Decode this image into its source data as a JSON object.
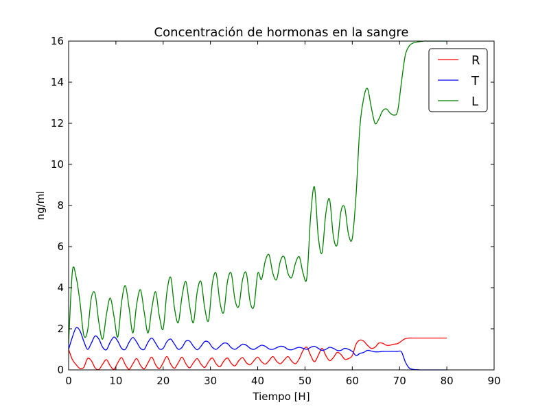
{
  "chart_data": {
    "type": "line",
    "title": "Concentración de hormonas en la sangre",
    "xlabel": "Tiempo [H]",
    "ylabel": "ng/ml",
    "xlim": [
      0,
      90
    ],
    "ylim": [
      0,
      16
    ],
    "xticks": [
      0,
      10,
      20,
      30,
      40,
      50,
      60,
      70,
      80,
      90
    ],
    "yticks": [
      0,
      2,
      4,
      6,
      8,
      10,
      12,
      14,
      16
    ],
    "grid": false,
    "legend_position": "top-right",
    "series": [
      {
        "name": "R",
        "color": "#ff0000",
        "x": [
          0,
          0.8,
          1.6,
          2.4,
          3.2,
          4.0,
          4.8,
          5.6,
          6.4,
          7.2,
          8.0,
          8.8,
          9.6,
          10.4,
          11.2,
          12.0,
          12.8,
          13.6,
          14.4,
          15.2,
          16.0,
          16.8,
          17.6,
          18.4,
          19.2,
          20.0,
          20.8,
          21.6,
          22.4,
          23.2,
          24.0,
          24.8,
          25.6,
          26.4,
          27.2,
          28.0,
          28.8,
          29.6,
          30.4,
          31.2,
          32.0,
          32.8,
          33.6,
          34.4,
          35.2,
          36.0,
          36.8,
          37.6,
          38.4,
          39.2,
          40.0,
          40.8,
          41.6,
          42.4,
          43.2,
          44.0,
          44.8,
          45.6,
          46.4,
          47.2,
          48.0,
          48.8,
          49.6,
          50.4,
          51.2,
          52.0,
          52.8,
          53.6,
          54.4,
          55.2,
          56.0,
          56.8,
          57.6,
          58.4,
          59.2,
          60.0,
          60.8,
          61.6,
          62.4,
          63.2,
          64.0,
          64.8,
          65.6,
          66.4,
          67.2,
          68.0,
          68.8,
          69.6,
          70.4,
          71.2,
          72.0,
          72.8,
          73.6,
          74.4,
          75.2,
          76.0,
          76.8,
          77.6,
          78.4,
          79.2,
          80.0
        ],
        "values": [
          1.0,
          0.5,
          0.25,
          0.07,
          0.12,
          0.55,
          0.45,
          0.1,
          0.02,
          0.28,
          0.5,
          0.2,
          0.03,
          0.35,
          0.6,
          0.25,
          0.03,
          0.3,
          0.55,
          0.22,
          0.05,
          0.35,
          0.62,
          0.25,
          0.06,
          0.35,
          0.65,
          0.28,
          0.08,
          0.35,
          0.62,
          0.3,
          0.1,
          0.35,
          0.55,
          0.28,
          0.12,
          0.4,
          0.58,
          0.3,
          0.15,
          0.42,
          0.58,
          0.32,
          0.2,
          0.45,
          0.6,
          0.35,
          0.25,
          0.45,
          0.62,
          0.4,
          0.28,
          0.45,
          0.65,
          0.42,
          0.3,
          0.48,
          0.65,
          0.42,
          0.3,
          0.55,
          0.95,
          1.1,
          0.7,
          0.4,
          0.7,
          1.05,
          0.7,
          0.45,
          0.6,
          0.85,
          0.75,
          0.52,
          0.55,
          0.7,
          1.25,
          1.45,
          1.4,
          1.2,
          1.05,
          1.1,
          1.3,
          1.3,
          1.2,
          1.2,
          1.25,
          1.28,
          1.4,
          1.52,
          1.55,
          1.55,
          1.55,
          1.55,
          1.55,
          1.55,
          1.55,
          1.55,
          1.55,
          1.55,
          1.55
        ]
      },
      {
        "name": "T",
        "color": "#0000ff",
        "x": [
          0,
          0.8,
          1.6,
          2.4,
          3.2,
          4.0,
          4.8,
          5.6,
          6.4,
          7.2,
          8.0,
          8.8,
          9.6,
          10.4,
          11.2,
          12.0,
          12.8,
          13.6,
          14.4,
          15.2,
          16.0,
          16.8,
          17.6,
          18.4,
          19.2,
          20.0,
          20.8,
          21.6,
          22.4,
          23.2,
          24.0,
          24.8,
          25.6,
          26.4,
          27.2,
          28.0,
          28.8,
          29.6,
          30.4,
          31.2,
          32.0,
          32.8,
          33.6,
          34.4,
          35.2,
          36.0,
          36.8,
          37.6,
          38.4,
          39.2,
          40.0,
          40.8,
          41.6,
          42.4,
          43.2,
          44.0,
          44.8,
          45.6,
          46.4,
          47.2,
          48.0,
          48.8,
          49.6,
          50.4,
          51.2,
          52.0,
          52.8,
          53.6,
          54.4,
          55.2,
          56.0,
          56.8,
          57.6,
          58.4,
          59.2,
          60.0,
          60.8,
          61.6,
          62.4,
          63.2,
          64.0,
          64.8,
          65.6,
          66.4,
          67.2,
          68.0,
          68.8,
          69.6,
          70.4,
          71.2,
          72.0,
          72.8,
          73.6,
          74.4,
          75.2,
          76.0,
          76.8,
          77.6,
          78.4,
          79.2,
          80.0
        ],
        "values": [
          1.0,
          1.6,
          2.05,
          1.9,
          1.4,
          1.0,
          1.3,
          1.65,
          1.5,
          1.1,
          0.98,
          1.35,
          1.6,
          1.4,
          1.05,
          1.0,
          1.35,
          1.58,
          1.35,
          1.05,
          1.0,
          1.35,
          1.55,
          1.3,
          1.02,
          1.05,
          1.38,
          1.5,
          1.25,
          1.0,
          1.1,
          1.4,
          1.4,
          1.15,
          0.98,
          1.15,
          1.38,
          1.35,
          1.1,
          1.0,
          1.15,
          1.3,
          1.28,
          1.08,
          1.0,
          1.12,
          1.25,
          1.2,
          1.05,
          1.0,
          1.1,
          1.2,
          1.15,
          1.02,
          1.0,
          1.08,
          1.15,
          1.12,
          1.0,
          0.98,
          1.05,
          1.1,
          1.05,
          1.0,
          1.1,
          1.15,
          1.05,
          0.95,
          1.0,
          1.1,
          1.05,
          0.95,
          0.95,
          1.05,
          1.0,
          0.9,
          0.7,
          0.8,
          0.85,
          0.95,
          0.92,
          0.88,
          0.88,
          0.9,
          0.9,
          0.9,
          0.9,
          0.9,
          0.88,
          0.4,
          0.1,
          0.03,
          0.01,
          0.0,
          0.0,
          0.0,
          0.0,
          0.0,
          0.0,
          0.0,
          0.0
        ]
      },
      {
        "name": "L",
        "color": "#008000",
        "x": [
          0,
          0.8,
          1.6,
          2.4,
          3.2,
          4.0,
          4.8,
          5.6,
          6.4,
          7.2,
          8.0,
          8.8,
          9.6,
          10.4,
          11.2,
          12.0,
          12.8,
          13.6,
          14.4,
          15.2,
          16.0,
          16.8,
          17.6,
          18.4,
          19.2,
          20.0,
          20.8,
          21.6,
          22.4,
          23.2,
          24.0,
          24.8,
          25.6,
          26.4,
          27.2,
          28.0,
          28.8,
          29.6,
          30.4,
          31.2,
          32.0,
          32.8,
          33.6,
          34.4,
          35.2,
          36.0,
          36.8,
          37.6,
          38.4,
          39.2,
          40.0,
          40.8,
          41.6,
          42.4,
          43.2,
          44.0,
          44.8,
          45.6,
          46.4,
          47.2,
          48.0,
          48.8,
          49.6,
          50.4,
          51.2,
          52.0,
          52.8,
          53.6,
          54.4,
          55.2,
          56.0,
          56.8,
          57.6,
          58.4,
          59.2,
          60.0,
          60.8,
          61.6,
          62.4,
          63.2,
          64.0,
          64.8,
          65.6,
          66.4,
          67.2,
          68.0,
          68.8,
          69.6,
          70.4,
          71.2,
          72.0,
          72.8,
          73.6,
          74.4,
          75.2,
          76.0,
          76.8,
          77.6,
          78.4,
          79.2,
          80.0
        ],
        "values": [
          1.3,
          4.8,
          4.5,
          3.3,
          1.7,
          1.9,
          3.5,
          3.7,
          2.3,
          1.5,
          2.7,
          3.5,
          2.6,
          1.6,
          3.3,
          4.1,
          3.0,
          1.8,
          3.2,
          3.9,
          2.8,
          1.8,
          3.0,
          3.8,
          2.6,
          2.0,
          3.8,
          4.5,
          3.0,
          2.3,
          3.6,
          4.3,
          3.1,
          2.3,
          3.8,
          4.3,
          3.0,
          2.4,
          4.2,
          4.7,
          3.3,
          2.8,
          4.3,
          4.7,
          3.4,
          3.1,
          4.4,
          4.7,
          3.3,
          3.1,
          4.7,
          4.4,
          5.3,
          5.6,
          4.7,
          4.4,
          5.3,
          5.5,
          4.7,
          4.5,
          5.2,
          5.5,
          4.7,
          4.5,
          7.5,
          8.9,
          6.5,
          5.7,
          7.6,
          8.3,
          6.5,
          6.1,
          7.7,
          7.9,
          6.6,
          6.4,
          8.5,
          11.8,
          13.2,
          13.7,
          12.8,
          12.0,
          12.2,
          12.6,
          12.7,
          12.5,
          12.4,
          12.6,
          14.0,
          15.3,
          15.75,
          15.9,
          15.95,
          15.98,
          16.0,
          16.0,
          16.0,
          16.0,
          16.0,
          16.0,
          16.0
        ]
      }
    ]
  }
}
